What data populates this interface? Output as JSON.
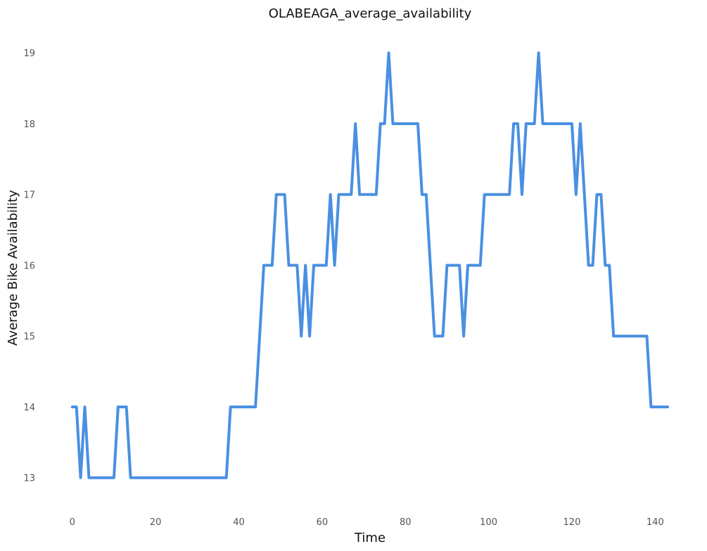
{
  "chart_data": {
    "type": "line",
    "title": "OLABEAGA_average_availability",
    "xlabel": "Time",
    "ylabel": "Average Bike Availability",
    "xlim": [
      -3,
      144
    ],
    "ylim": [
      12.65,
      19.3
    ],
    "xticks": [
      0,
      20,
      40,
      60,
      80,
      100,
      120,
      140
    ],
    "yticks": [
      13,
      14,
      15,
      16,
      17,
      18,
      19
    ],
    "grid": false,
    "legend": "none",
    "series": [
      {
        "color": "#4a90e2",
        "points": [
          [
            0,
            14
          ],
          [
            1,
            14
          ],
          [
            2,
            13
          ],
          [
            3,
            14
          ],
          [
            4,
            13
          ],
          [
            5,
            13
          ],
          [
            6,
            13
          ],
          [
            7,
            13
          ],
          [
            8,
            13
          ],
          [
            9,
            13
          ],
          [
            10,
            13
          ],
          [
            11,
            14
          ],
          [
            12,
            14
          ],
          [
            13,
            14
          ],
          [
            14,
            13
          ],
          [
            15,
            13
          ],
          [
            16,
            13
          ],
          [
            17,
            13
          ],
          [
            18,
            13
          ],
          [
            19,
            13
          ],
          [
            20,
            13
          ],
          [
            21,
            13
          ],
          [
            22,
            13
          ],
          [
            23,
            13
          ],
          [
            24,
            13
          ],
          [
            25,
            13
          ],
          [
            26,
            13
          ],
          [
            27,
            13
          ],
          [
            28,
            13
          ],
          [
            29,
            13
          ],
          [
            30,
            13
          ],
          [
            31,
            13
          ],
          [
            32,
            13
          ],
          [
            33,
            13
          ],
          [
            34,
            13
          ],
          [
            35,
            13
          ],
          [
            36,
            13
          ],
          [
            37,
            13
          ],
          [
            38,
            14
          ],
          [
            39,
            14
          ],
          [
            40,
            14
          ],
          [
            41,
            14
          ],
          [
            42,
            14
          ],
          [
            43,
            14
          ],
          [
            44,
            14
          ],
          [
            45,
            15
          ],
          [
            46,
            16
          ],
          [
            47,
            16
          ],
          [
            48,
            16
          ],
          [
            49,
            17
          ],
          [
            50,
            17
          ],
          [
            51,
            17
          ],
          [
            52,
            16
          ],
          [
            53,
            16
          ],
          [
            54,
            16
          ],
          [
            55,
            15
          ],
          [
            56,
            16
          ],
          [
            57,
            15
          ],
          [
            58,
            16
          ],
          [
            59,
            16
          ],
          [
            60,
            16
          ],
          [
            61,
            16
          ],
          [
            62,
            17
          ],
          [
            63,
            16
          ],
          [
            64,
            17
          ],
          [
            65,
            17
          ],
          [
            66,
            17
          ],
          [
            67,
            17
          ],
          [
            68,
            18
          ],
          [
            69,
            17
          ],
          [
            70,
            17
          ],
          [
            71,
            17
          ],
          [
            72,
            17
          ],
          [
            73,
            17
          ],
          [
            74,
            18
          ],
          [
            75,
            18
          ],
          [
            76,
            19
          ],
          [
            77,
            18
          ],
          [
            78,
            18
          ],
          [
            79,
            18
          ],
          [
            80,
            18
          ],
          [
            81,
            18
          ],
          [
            82,
            18
          ],
          [
            83,
            18
          ],
          [
            84,
            17
          ],
          [
            85,
            17
          ],
          [
            86,
            16
          ],
          [
            87,
            15
          ],
          [
            88,
            15
          ],
          [
            89,
            15
          ],
          [
            90,
            16
          ],
          [
            91,
            16
          ],
          [
            92,
            16
          ],
          [
            93,
            16
          ],
          [
            94,
            15
          ],
          [
            95,
            16
          ],
          [
            96,
            16
          ],
          [
            97,
            16
          ],
          [
            98,
            16
          ],
          [
            99,
            17
          ],
          [
            100,
            17
          ],
          [
            101,
            17
          ],
          [
            102,
            17
          ],
          [
            103,
            17
          ],
          [
            104,
            17
          ],
          [
            105,
            17
          ],
          [
            106,
            18
          ],
          [
            107,
            18
          ],
          [
            108,
            17
          ],
          [
            109,
            18
          ],
          [
            110,
            18
          ],
          [
            111,
            18
          ],
          [
            112,
            19
          ],
          [
            113,
            18
          ],
          [
            114,
            18
          ],
          [
            115,
            18
          ],
          [
            116,
            18
          ],
          [
            117,
            18
          ],
          [
            118,
            18
          ],
          [
            119,
            18
          ],
          [
            120,
            18
          ],
          [
            121,
            17
          ],
          [
            122,
            18
          ],
          [
            123,
            17
          ],
          [
            124,
            16
          ],
          [
            125,
            16
          ],
          [
            126,
            17
          ],
          [
            127,
            17
          ],
          [
            128,
            16
          ],
          [
            129,
            16
          ],
          [
            130,
            15
          ],
          [
            131,
            15
          ],
          [
            132,
            15
          ],
          [
            133,
            15
          ],
          [
            134,
            15
          ],
          [
            135,
            15
          ],
          [
            136,
            15
          ],
          [
            137,
            15
          ],
          [
            138,
            15
          ],
          [
            139,
            14
          ],
          [
            140,
            14
          ],
          [
            141,
            14
          ],
          [
            142,
            14
          ],
          [
            143,
            14
          ]
        ]
      }
    ]
  }
}
